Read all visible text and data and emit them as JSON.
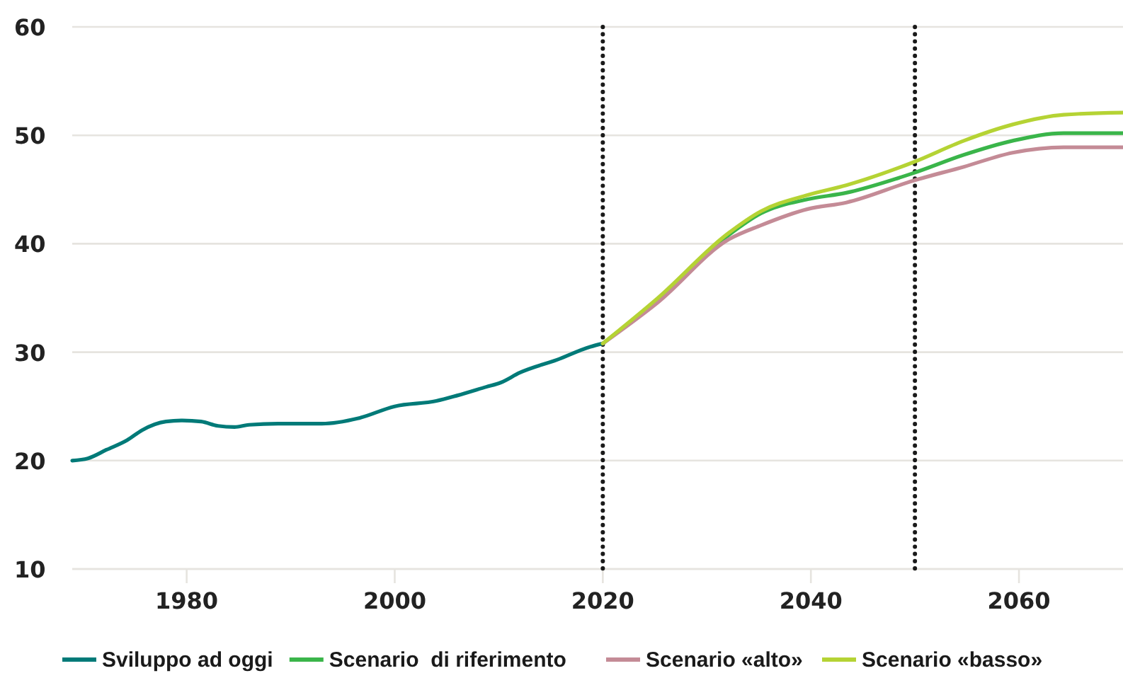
{
  "chart_data": {
    "type": "line",
    "xlim": [
      1969,
      2070
    ],
    "ylim": [
      10,
      60
    ],
    "xticks": [
      1980,
      2000,
      2020,
      2040,
      2060
    ],
    "yticks": [
      10,
      20,
      30,
      40,
      50,
      60
    ],
    "grid": "y",
    "legend": "bottom",
    "line_style": "solid",
    "ref_lines": [
      {
        "axis": "x",
        "value": 2020,
        "color": "#1a1a1a",
        "line_style": "dotted"
      },
      {
        "axis": "x",
        "value": 2050,
        "color": "#1a1a1a",
        "line_style": "dotted"
      }
    ],
    "series": [
      {
        "name": "Sviluppo ad oggi",
        "color": "#007a78",
        "x": [
          1969,
          1970.5,
          1972.3,
          1974.3,
          1975.7,
          1978,
          1979.6,
          1981.4,
          1983,
          1984.6,
          1986,
          1988.8,
          1993,
          1996.5,
          2000,
          2004,
          2006,
          2008.8,
          2010.2,
          2012,
          2015.6,
          2018.8,
          2020
        ],
        "values": [
          20.0,
          20.2,
          21.0,
          21.9,
          22.8,
          23.6,
          23.7,
          23.6,
          23.2,
          23.1,
          23.3,
          23.4,
          23.4,
          23.9,
          25.0,
          25.5,
          26.0,
          26.8,
          27.2,
          28.1,
          29.3,
          30.5,
          30.8
        ]
      },
      {
        "name": "Scenario  di riferimento",
        "color": "#3ab54a",
        "x": [
          2020,
          2025.3,
          2032.1,
          2035.2,
          2039.7,
          2043.4,
          2049.8,
          2054.7,
          2059.4,
          2064.3,
          2070
        ],
        "values": [
          30.8,
          34.8,
          40.8,
          42.8,
          44.1,
          44.7,
          46.5,
          48.2,
          49.5,
          50.2,
          50.2
        ]
      },
      {
        "name": "Scenario «alto»",
        "color": "#c48b96",
        "x": [
          2020,
          2025.3,
          2032.1,
          2035.2,
          2039.7,
          2043.4,
          2049.8,
          2054.7,
          2059.4,
          2064.3,
          2070
        ],
        "values": [
          30.8,
          34.6,
          40.4,
          41.7,
          43.2,
          43.8,
          45.8,
          47.1,
          48.4,
          48.9,
          48.9
        ]
      },
      {
        "name": "Scenario «basso»",
        "color": "#b5d334",
        "x": [
          2020,
          2025.3,
          2032.1,
          2035.2,
          2039.7,
          2043.4,
          2049.8,
          2054.7,
          2059.4,
          2064.3,
          2070
        ],
        "values": [
          30.8,
          35.0,
          41.0,
          43.0,
          44.5,
          45.4,
          47.5,
          49.5,
          51.0,
          51.9,
          52.1
        ]
      }
    ]
  }
}
